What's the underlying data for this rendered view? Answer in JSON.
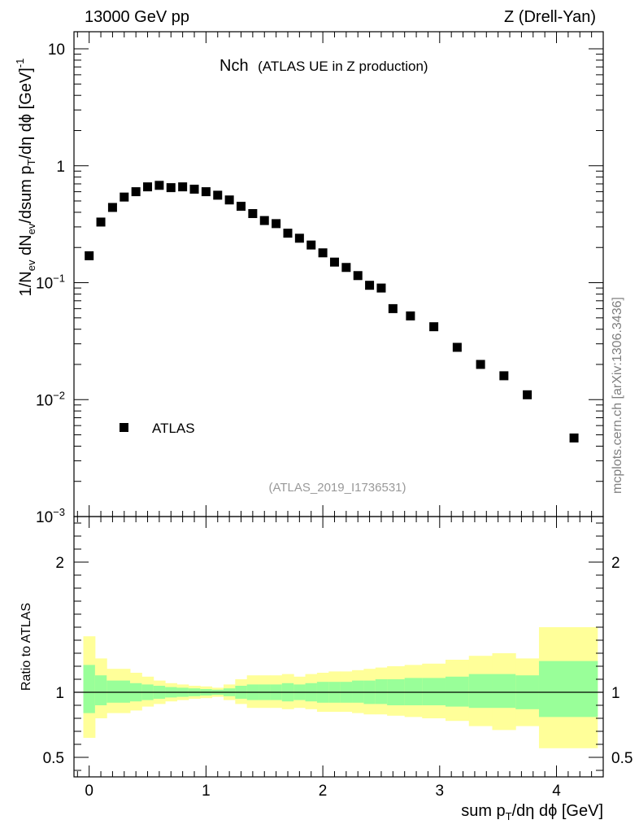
{
  "header": {
    "left": "13000 GeV pp",
    "right": "Z (Drell-Yan)"
  },
  "plot_title": {
    "main": "Nch",
    "sub": "(ATLAS UE in Z production)"
  },
  "analysis_tag": "(ATLAS_2019_I1736531)",
  "side_watermark": "mcplots.cern.ch [arXiv:1306.3436]",
  "legend": {
    "marker_label": "ATLAS"
  },
  "axes": {
    "main_ylabel": "1/N_ev dN_ev/dsum p_T/dη dϕ [GeV]^-1",
    "ratio_ylabel": "Ratio to ATLAS",
    "xlabel": "sum p_T/dη dϕ [GeV]"
  },
  "colors": {
    "band_inner": "#99ff99",
    "band_outer": "#ffff99",
    "marker": "#000000"
  },
  "chart_data": [
    {
      "type": "scatter",
      "panel": "main",
      "yscale": "log",
      "xlim": [
        -0.13,
        4.4
      ],
      "ylim": [
        0.001,
        14
      ],
      "x": [
        0.0,
        0.1,
        0.2,
        0.3,
        0.4,
        0.5,
        0.6,
        0.7,
        0.8,
        0.9,
        1.0,
        1.1,
        1.2,
        1.3,
        1.4,
        1.5,
        1.6,
        1.7,
        1.8,
        1.9,
        2.0,
        2.1,
        2.2,
        2.3,
        2.4,
        2.5,
        2.6,
        2.75,
        2.95,
        3.15,
        3.35,
        3.55,
        3.75,
        4.15
      ],
      "y": [
        0.17,
        0.33,
        0.44,
        0.54,
        0.6,
        0.66,
        0.68,
        0.65,
        0.66,
        0.63,
        0.6,
        0.56,
        0.51,
        0.45,
        0.39,
        0.34,
        0.32,
        0.265,
        0.24,
        0.21,
        0.18,
        0.15,
        0.135,
        0.115,
        0.095,
        0.09,
        0.06,
        0.052,
        0.042,
        0.028,
        0.02,
        0.016,
        0.011,
        0.0047
      ],
      "series_name": "ATLAS",
      "yticks": [
        {
          "value": 0.001,
          "mantissa": "10",
          "exponent": "−3"
        },
        {
          "value": 0.01,
          "mantissa": "10",
          "exponent": "−2"
        },
        {
          "value": 0.1,
          "mantissa": "10",
          "exponent": "−1"
        },
        {
          "value": 1,
          "mantissa": "1",
          "exponent": ""
        },
        {
          "value": 10,
          "mantissa": "10",
          "exponent": ""
        }
      ]
    },
    {
      "type": "area",
      "panel": "ratio",
      "xlim": [
        -0.13,
        4.4
      ],
      "ylim": [
        0.35,
        2.35
      ],
      "reference_line": 1,
      "yticks": [
        "0.5",
        "1",
        "2"
      ],
      "xticks": [
        "0",
        "1",
        "2",
        "3",
        "4"
      ],
      "bins": [
        {
          "x0": -0.05,
          "x1": 0.05,
          "in_lo": 0.84,
          "in_hi": 1.21,
          "out_lo": 0.65,
          "out_hi": 1.43
        },
        {
          "x0": 0.05,
          "x1": 0.15,
          "in_lo": 0.9,
          "in_hi": 1.13,
          "out_lo": 0.8,
          "out_hi": 1.26
        },
        {
          "x0": 0.15,
          "x1": 0.35,
          "in_lo": 0.92,
          "in_hi": 1.09,
          "out_lo": 0.84,
          "out_hi": 1.18
        },
        {
          "x0": 0.35,
          "x1": 0.45,
          "in_lo": 0.93,
          "in_hi": 1.07,
          "out_lo": 0.86,
          "out_hi": 1.15
        },
        {
          "x0": 0.45,
          "x1": 0.55,
          "in_lo": 0.94,
          "in_hi": 1.06,
          "out_lo": 0.89,
          "out_hi": 1.12
        },
        {
          "x0": 0.55,
          "x1": 0.65,
          "in_lo": 0.95,
          "in_hi": 1.05,
          "out_lo": 0.91,
          "out_hi": 1.09
        },
        {
          "x0": 0.65,
          "x1": 0.75,
          "in_lo": 0.96,
          "in_hi": 1.04,
          "out_lo": 0.93,
          "out_hi": 1.07
        },
        {
          "x0": 0.75,
          "x1": 0.85,
          "in_lo": 0.965,
          "in_hi": 1.035,
          "out_lo": 0.94,
          "out_hi": 1.06
        },
        {
          "x0": 0.85,
          "x1": 0.95,
          "in_lo": 0.97,
          "in_hi": 1.03,
          "out_lo": 0.95,
          "out_hi": 1.05
        },
        {
          "x0": 0.95,
          "x1": 1.05,
          "in_lo": 0.975,
          "in_hi": 1.025,
          "out_lo": 0.955,
          "out_hi": 1.045
        },
        {
          "x0": 1.05,
          "x1": 1.15,
          "in_lo": 0.98,
          "in_hi": 1.02,
          "out_lo": 0.965,
          "out_hi": 1.035
        },
        {
          "x0": 1.15,
          "x1": 1.25,
          "in_lo": 0.97,
          "in_hi": 1.03,
          "out_lo": 0.94,
          "out_hi": 1.06
        },
        {
          "x0": 1.25,
          "x1": 1.35,
          "in_lo": 0.95,
          "in_hi": 1.05,
          "out_lo": 0.91,
          "out_hi": 1.1
        },
        {
          "x0": 1.35,
          "x1": 1.45,
          "in_lo": 0.94,
          "in_hi": 1.06,
          "out_lo": 0.88,
          "out_hi": 1.13
        },
        {
          "x0": 1.45,
          "x1": 1.55,
          "in_lo": 0.94,
          "in_hi": 1.06,
          "out_lo": 0.88,
          "out_hi": 1.13
        },
        {
          "x0": 1.55,
          "x1": 1.65,
          "in_lo": 0.94,
          "in_hi": 1.06,
          "out_lo": 0.88,
          "out_hi": 1.13
        },
        {
          "x0": 1.65,
          "x1": 1.75,
          "in_lo": 0.93,
          "in_hi": 1.07,
          "out_lo": 0.87,
          "out_hi": 1.14
        },
        {
          "x0": 1.75,
          "x1": 1.85,
          "in_lo": 0.94,
          "in_hi": 1.06,
          "out_lo": 0.88,
          "out_hi": 1.12
        },
        {
          "x0": 1.85,
          "x1": 1.95,
          "in_lo": 0.93,
          "in_hi": 1.07,
          "out_lo": 0.87,
          "out_hi": 1.14
        },
        {
          "x0": 1.95,
          "x1": 2.05,
          "in_lo": 0.92,
          "in_hi": 1.08,
          "out_lo": 0.85,
          "out_hi": 1.15
        },
        {
          "x0": 2.05,
          "x1": 2.15,
          "in_lo": 0.92,
          "in_hi": 1.08,
          "out_lo": 0.85,
          "out_hi": 1.16
        },
        {
          "x0": 2.15,
          "x1": 2.25,
          "in_lo": 0.92,
          "in_hi": 1.08,
          "out_lo": 0.85,
          "out_hi": 1.16
        },
        {
          "x0": 2.25,
          "x1": 2.35,
          "in_lo": 0.92,
          "in_hi": 1.09,
          "out_lo": 0.84,
          "out_hi": 1.17
        },
        {
          "x0": 2.35,
          "x1": 2.45,
          "in_lo": 0.91,
          "in_hi": 1.09,
          "out_lo": 0.83,
          "out_hi": 1.18
        },
        {
          "x0": 2.45,
          "x1": 2.55,
          "in_lo": 0.91,
          "in_hi": 1.1,
          "out_lo": 0.83,
          "out_hi": 1.19
        },
        {
          "x0": 2.55,
          "x1": 2.7,
          "in_lo": 0.9,
          "in_hi": 1.1,
          "out_lo": 0.82,
          "out_hi": 1.2
        },
        {
          "x0": 2.7,
          "x1": 2.85,
          "in_lo": 0.9,
          "in_hi": 1.11,
          "out_lo": 0.81,
          "out_hi": 1.21
        },
        {
          "x0": 2.85,
          "x1": 3.05,
          "in_lo": 0.9,
          "in_hi": 1.11,
          "out_lo": 0.8,
          "out_hi": 1.22
        },
        {
          "x0": 3.05,
          "x1": 3.25,
          "in_lo": 0.89,
          "in_hi": 1.12,
          "out_lo": 0.78,
          "out_hi": 1.25
        },
        {
          "x0": 3.25,
          "x1": 3.45,
          "in_lo": 0.88,
          "in_hi": 1.14,
          "out_lo": 0.74,
          "out_hi": 1.28
        },
        {
          "x0": 3.45,
          "x1": 3.65,
          "in_lo": 0.88,
          "in_hi": 1.14,
          "out_lo": 0.71,
          "out_hi": 1.3
        },
        {
          "x0": 3.65,
          "x1": 3.85,
          "in_lo": 0.87,
          "in_hi": 1.13,
          "out_lo": 0.74,
          "out_hi": 1.26
        },
        {
          "x0": 3.85,
          "x1": 4.35,
          "in_lo": 0.81,
          "in_hi": 1.24,
          "out_lo": 0.57,
          "out_hi": 1.5
        }
      ]
    }
  ]
}
